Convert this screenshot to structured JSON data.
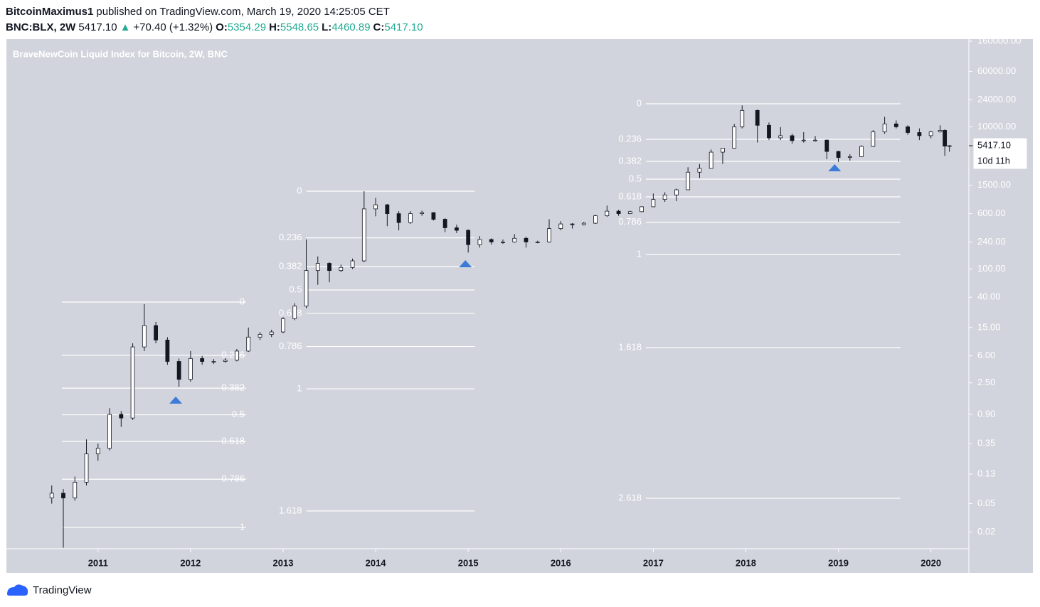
{
  "header": {
    "author": "BitcoinMaximus1",
    "published": "published on TradingView.com, March 19, 2020 14:25:05 CET",
    "symbol": "BNC:BLX, 2W",
    "last": "5417.10",
    "change": "+70.40 (+1.32%)",
    "ohlc": [
      {
        "key": "O:",
        "value": "5354.29"
      },
      {
        "key": "H:",
        "value": "5548.65"
      },
      {
        "key": "L:",
        "value": "4460.89"
      },
      {
        "key": "C:",
        "value": "5417.10"
      }
    ]
  },
  "footer": "TradingView",
  "chart_data": {
    "type": "candlestick",
    "title": "BraveNewCoin Liquid Index for Bitcoin, 2W, BNC",
    "log_scale": true,
    "up_color": "#ffffff",
    "down_color": "#131722",
    "xlim": [
      2010.01,
      2020.41
    ],
    "xticks": [
      2011,
      2012,
      2013,
      2014,
      2015,
      2016,
      2017,
      2018,
      2019,
      2020
    ],
    "ylim": [
      0.0116,
      171400
    ],
    "yticks": [
      {
        "value": 160000,
        "label": "160000.00"
      },
      {
        "value": 60000,
        "label": "60000.00"
      },
      {
        "value": 24000,
        "label": "24000.00"
      },
      {
        "value": 10000,
        "label": "10000.00"
      },
      {
        "value": 1500,
        "label": "1500.00"
      },
      {
        "value": 600,
        "label": "600.00"
      },
      {
        "value": 240,
        "label": "240.00"
      },
      {
        "value": 100,
        "label": "100.00"
      },
      {
        "value": 40,
        "label": "40.00"
      },
      {
        "value": 15,
        "label": "15.00"
      },
      {
        "value": 6,
        "label": "6.00"
      },
      {
        "value": 2.5,
        "label": "2.50"
      },
      {
        "value": 0.9,
        "label": "0.90"
      },
      {
        "value": 0.35,
        "label": "0.35"
      },
      {
        "value": 0.13,
        "label": "0.13"
      },
      {
        "value": 0.05,
        "label": "0.05"
      },
      {
        "value": 0.02,
        "label": "0.02"
      }
    ],
    "price_label": "5417.10",
    "countdown": "10d 11h",
    "x": [
      2010.5,
      2010.625,
      2010.75,
      2010.875,
      2011.0,
      2011.125,
      2011.25,
      2011.375,
      2011.5,
      2011.625,
      2011.75,
      2011.875,
      2012.0,
      2012.125,
      2012.25,
      2012.375,
      2012.5,
      2012.625,
      2012.75,
      2012.875,
      2013.0,
      2013.125,
      2013.25,
      2013.375,
      2013.5,
      2013.625,
      2013.75,
      2013.875,
      2014.0,
      2014.125,
      2014.25,
      2014.375,
      2014.5,
      2014.625,
      2014.75,
      2014.875,
      2015.0,
      2015.125,
      2015.25,
      2015.375,
      2015.5,
      2015.625,
      2015.75,
      2015.875,
      2016.0,
      2016.125,
      2016.25,
      2016.375,
      2016.5,
      2016.625,
      2016.75,
      2016.875,
      2017.0,
      2017.125,
      2017.25,
      2017.375,
      2017.5,
      2017.625,
      2017.75,
      2017.875,
      2017.96,
      2018.125,
      2018.25,
      2018.375,
      2018.5,
      2018.625,
      2018.75,
      2018.875,
      2019.0,
      2019.125,
      2019.25,
      2019.375,
      2019.5,
      2019.625,
      2019.75,
      2019.875,
      2020.0,
      2020.1,
      2020.15,
      2020.2
    ],
    "open": [
      0.06,
      0.07,
      0.06,
      0.1,
      0.25,
      0.3,
      0.9,
      0.8,
      8,
      16,
      10,
      5,
      2.8,
      5.5,
      5,
      5,
      5.2,
      7,
      11,
      12,
      13,
      20,
      30,
      95,
      120,
      95,
      105,
      130,
      700,
      800,
      600,
      450,
      600,
      620,
      500,
      380,
      350,
      220,
      260,
      240,
      240,
      270,
      240,
      240,
      370,
      430,
      420,
      440,
      560,
      650,
      600,
      640,
      750,
      950,
      1100,
      1300,
      2300,
      2600,
      4400,
      5000,
      10000,
      17000,
      10500,
      7000,
      7500,
      6400,
      6500,
      6500,
      4500,
      3700,
      3800,
      5300,
      8500,
      11000,
      10000,
      8300,
      7500,
      8500,
      8900,
      5354.29
    ],
    "high": [
      0.09,
      0.08,
      0.12,
      0.4,
      0.35,
      1.1,
      1,
      9,
      32,
      18,
      11,
      5.5,
      7,
      6,
      5.4,
      5.6,
      7.5,
      15,
      13,
      14,
      21,
      33,
      260,
      150,
      125,
      115,
      140,
      1240,
      1000,
      820,
      650,
      650,
      660,
      630,
      520,
      420,
      360,
      290,
      270,
      260,
      310,
      285,
      250,
      500,
      470,
      440,
      460,
      580,
      780,
      680,
      660,
      760,
      1150,
      1200,
      1350,
      2700,
      3000,
      4800,
      5000,
      11000,
      20000,
      17500,
      11500,
      9900,
      8000,
      8400,
      7400,
      6600,
      4600,
      4100,
      5500,
      9000,
      13800,
      12300,
      10500,
      9500,
      8800,
      10500,
      9200,
      5548.65
    ],
    "low": [
      0.05,
      0.012,
      0.055,
      0.09,
      0.2,
      0.28,
      0.6,
      0.75,
      7,
      9,
      4.5,
      2.2,
      2.6,
      4.5,
      4.6,
      4.8,
      5,
      6.8,
      10,
      11,
      12.5,
      19,
      28,
      60,
      65,
      90,
      100,
      125,
      550,
      400,
      350,
      430,
      560,
      480,
      330,
      320,
      170,
      200,
      220,
      225,
      235,
      200,
      230,
      235,
      350,
      370,
      410,
      430,
      540,
      560,
      590,
      630,
      740,
      880,
      900,
      1300,
      1900,
      2600,
      3000,
      5000,
      9500,
      6000,
      6500,
      6500,
      5800,
      6000,
      6200,
      3500,
      3200,
      3350,
      3800,
      5200,
      8000,
      9500,
      7700,
      6500,
      6900,
      8300,
      3900,
      4460.89
    ],
    "close": [
      0.07,
      0.06,
      0.1,
      0.25,
      0.3,
      0.9,
      0.8,
      8,
      16,
      10,
      5,
      2.8,
      5.5,
      5,
      5,
      5.2,
      7,
      11,
      12,
      13,
      20,
      30,
      95,
      120,
      95,
      105,
      130,
      700,
      800,
      600,
      450,
      600,
      620,
      500,
      380,
      350,
      220,
      260,
      240,
      240,
      270,
      240,
      240,
      370,
      430,
      420,
      440,
      560,
      650,
      600,
      640,
      750,
      950,
      1100,
      1300,
      2300,
      2600,
      4400,
      5000,
      10000,
      17000,
      10500,
      7000,
      7500,
      6400,
      6500,
      6500,
      4500,
      3700,
      3800,
      5300,
      8500,
      11000,
      10000,
      8300,
      7500,
      8500,
      8900,
      5354.29,
      5417.1
    ],
    "fib_color": "#ffffff",
    "fibs": [
      {
        "levels": [
          0,
          0.236,
          0.382,
          0.5,
          0.618,
          0.786,
          1
        ],
        "high": 34.2,
        "low": 0.0231,
        "x": [
          2010.61,
          2012.6
        ],
        "label_side": "right"
      },
      {
        "levels": [
          0,
          0.236,
          0.382,
          0.5,
          0.618,
          0.786,
          1,
          1.618
        ],
        "high": 1242,
        "low": 2.06,
        "x": [
          2013.25,
          2015.07
        ],
        "label_side": "left"
      },
      {
        "levels": [
          0,
          0.236,
          0.382,
          0.5,
          0.618,
          0.786,
          1,
          1.618,
          2.618
        ],
        "high": 21090,
        "low": 160,
        "x": [
          2016.92,
          2019.67
        ],
        "label_side": "left"
      }
    ],
    "marker_color": "#3d7bd9",
    "markers": [
      {
        "x": 2011.84,
        "y": 1.43
      },
      {
        "x": 2014.97,
        "y": 118.6
      },
      {
        "x": 2018.96,
        "y": 2655
      }
    ]
  }
}
